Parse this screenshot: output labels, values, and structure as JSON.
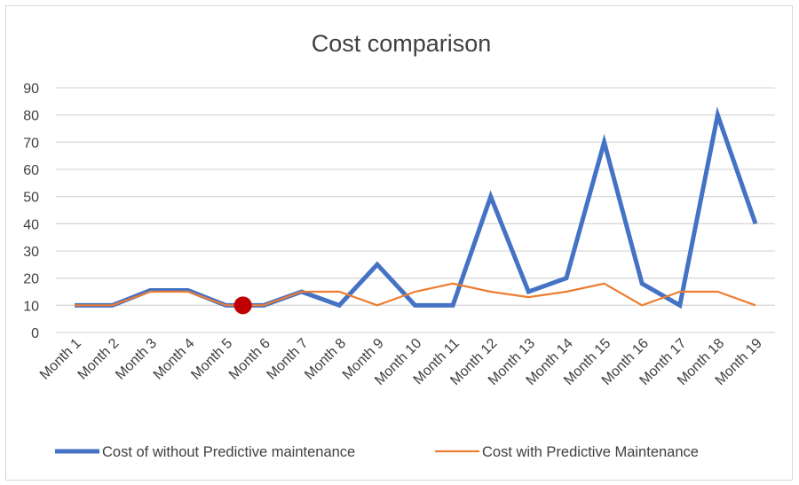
{
  "chart_data": {
    "type": "line",
    "title": "Cost comparison",
    "xlabel": "",
    "ylabel": "",
    "categories": [
      "Month 1",
      "Month 2",
      "Month 3",
      "Month 4",
      "Month 5",
      "Month 6",
      "Month 7",
      "Month 8",
      "Month 9",
      "Month 10",
      "Month 11",
      "Month 12",
      "Month 13",
      "Month 14",
      "Month 15",
      "Month 16",
      "Month 17",
      "Month 18",
      "Month 19"
    ],
    "yticks": [
      "0",
      "10",
      "20",
      "30",
      "40",
      "50",
      "60",
      "70",
      "80",
      "90"
    ],
    "ylim": [
      0,
      90
    ],
    "grid": true,
    "legend_position": "bottom",
    "series": [
      {
        "name": "Cost of without Predictive maintenance",
        "color": "#4472c4",
        "values": [
          10,
          10,
          15.5,
          15.5,
          10,
          10,
          15,
          10,
          25,
          10,
          10,
          50,
          15,
          20,
          70,
          18,
          10,
          80,
          40
        ]
      },
      {
        "name": "Cost with Predictive Maintenance",
        "color": "#ed7d31",
        "values": [
          10,
          10,
          15,
          15,
          10,
          10,
          15,
          15,
          10,
          15,
          18,
          15,
          13,
          15,
          18,
          10,
          15,
          15,
          10
        ]
      }
    ],
    "annotations": [
      {
        "type": "marker",
        "color": "#c00000",
        "x_between": [
          "Month 5",
          "Month 6"
        ],
        "y": 10
      }
    ]
  }
}
